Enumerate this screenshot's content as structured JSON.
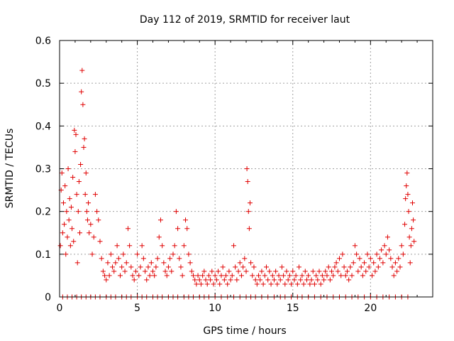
{
  "chart_data": {
    "type": "scatter",
    "title": "Day 112 of 2019, SRMTID for receiver laut",
    "xlabel": "GPS time / hours",
    "ylabel": "SRMTID / TECUs",
    "xlim": [
      0,
      24
    ],
    "ylim": [
      0,
      0.6
    ],
    "xticks": [
      0,
      5,
      10,
      15,
      20
    ],
    "xtick_labels": [
      "0",
      "5",
      "10",
      "15",
      "20"
    ],
    "yticks": [
      0,
      0.1,
      0.2,
      0.3,
      0.4,
      0.5,
      0.6
    ],
    "ytick_labels": [
      "0",
      "0.1",
      "0.2",
      "0.3",
      "0.4",
      "0.5",
      "0.6"
    ],
    "grid": true,
    "marker": "+",
    "color": "#e00000",
    "series": [
      {
        "name": "SRMTID",
        "points": [
          [
            0.05,
            0.12
          ],
          [
            0.1,
            0.25
          ],
          [
            0.15,
            0.29
          ],
          [
            0.2,
            0.15
          ],
          [
            0.25,
            0.22
          ],
          [
            0.3,
            0.17
          ],
          [
            0.35,
            0.26
          ],
          [
            0.4,
            0.1
          ],
          [
            0.45,
            0.2
          ],
          [
            0.5,
            0.14
          ],
          [
            0.55,
            0.3
          ],
          [
            0.6,
            0.18
          ],
          [
            0.65,
            0.23
          ],
          [
            0.7,
            0.12
          ],
          [
            0.75,
            0.21
          ],
          [
            0.8,
            0.16
          ],
          [
            0.85,
            0.28
          ],
          [
            0.9,
            0.13
          ],
          [
            0.95,
            0.39
          ],
          [
            1.0,
            0.34
          ],
          [
            1.05,
            0.38
          ],
          [
            1.1,
            0.24
          ],
          [
            1.15,
            0.08
          ],
          [
            1.2,
            0.2
          ],
          [
            1.25,
            0.27
          ],
          [
            1.3,
            0.15
          ],
          [
            1.35,
            0.31
          ],
          [
            1.4,
            0.48
          ],
          [
            1.45,
            0.53
          ],
          [
            1.5,
            0.45
          ],
          [
            1.55,
            0.35
          ],
          [
            1.6,
            0.37
          ],
          [
            1.65,
            0.24
          ],
          [
            1.7,
            0.29
          ],
          [
            1.75,
            0.2
          ],
          [
            1.8,
            0.18
          ],
          [
            1.85,
            0.22
          ],
          [
            1.9,
            0.15
          ],
          [
            2.0,
            0.17
          ],
          [
            2.1,
            0.1
          ],
          [
            2.2,
            0.14
          ],
          [
            2.3,
            0.24
          ],
          [
            2.4,
            0.2
          ],
          [
            2.5,
            0.18
          ],
          [
            2.6,
            0.13
          ],
          [
            2.7,
            0.09
          ],
          [
            2.8,
            0.06
          ],
          [
            2.9,
            0.05
          ],
          [
            3.0,
            0.04
          ],
          [
            3.1,
            0.08
          ],
          [
            3.2,
            0.05
          ],
          [
            3.3,
            0.1
          ],
          [
            3.4,
            0.07
          ],
          [
            3.5,
            0.06
          ],
          [
            3.6,
            0.08
          ],
          [
            3.7,
            0.12
          ],
          [
            3.8,
            0.09
          ],
          [
            3.9,
            0.05
          ],
          [
            4.0,
            0.07
          ],
          [
            4.1,
            0.1
          ],
          [
            4.2,
            0.06
          ],
          [
            4.3,
            0.08
          ],
          [
            4.4,
            0.16
          ],
          [
            4.5,
            0.12
          ],
          [
            4.6,
            0.07
          ],
          [
            4.7,
            0.05
          ],
          [
            4.8,
            0.04
          ],
          [
            4.9,
            0.06
          ],
          [
            5.0,
            0.1
          ],
          [
            5.1,
            0.05
          ],
          [
            5.2,
            0.07
          ],
          [
            5.3,
            0.12
          ],
          [
            5.4,
            0.09
          ],
          [
            5.5,
            0.06
          ],
          [
            5.6,
            0.04
          ],
          [
            5.7,
            0.07
          ],
          [
            5.8,
            0.05
          ],
          [
            5.9,
            0.08
          ],
          [
            6.0,
            0.06
          ],
          [
            6.1,
            0.05
          ],
          [
            6.2,
            0.07
          ],
          [
            6.3,
            0.09
          ],
          [
            6.4,
            0.14
          ],
          [
            6.5,
            0.18
          ],
          [
            6.6,
            0.12
          ],
          [
            6.7,
            0.08
          ],
          [
            6.8,
            0.06
          ],
          [
            6.9,
            0.05
          ],
          [
            7.0,
            0.07
          ],
          [
            7.1,
            0.09
          ],
          [
            7.2,
            0.06
          ],
          [
            7.3,
            0.1
          ],
          [
            7.4,
            0.12
          ],
          [
            7.5,
            0.2
          ],
          [
            7.6,
            0.16
          ],
          [
            7.7,
            0.09
          ],
          [
            7.8,
            0.07
          ],
          [
            7.9,
            0.05
          ],
          [
            8.0,
            0.12
          ],
          [
            8.1,
            0.18
          ],
          [
            8.2,
            0.16
          ],
          [
            8.3,
            0.1
          ],
          [
            8.4,
            0.08
          ],
          [
            8.5,
            0.06
          ],
          [
            8.6,
            0.05
          ],
          [
            8.7,
            0.04
          ],
          [
            8.8,
            0.03
          ],
          [
            8.9,
            0.05
          ],
          [
            9.0,
            0.04
          ],
          [
            9.1,
            0.03
          ],
          [
            9.2,
            0.05
          ],
          [
            9.3,
            0.06
          ],
          [
            9.4,
            0.04
          ],
          [
            9.5,
            0.03
          ],
          [
            9.6,
            0.05
          ],
          [
            9.7,
            0.04
          ],
          [
            9.8,
            0.06
          ],
          [
            9.9,
            0.03
          ],
          [
            10.0,
            0.05
          ],
          [
            10.1,
            0.04
          ],
          [
            10.2,
            0.06
          ],
          [
            10.3,
            0.03
          ],
          [
            10.4,
            0.05
          ],
          [
            10.5,
            0.07
          ],
          [
            10.6,
            0.04
          ],
          [
            10.7,
            0.05
          ],
          [
            10.8,
            0.03
          ],
          [
            10.9,
            0.06
          ],
          [
            11.0,
            0.04
          ],
          [
            11.1,
            0.05
          ],
          [
            11.2,
            0.12
          ],
          [
            11.3,
            0.07
          ],
          [
            11.4,
            0.04
          ],
          [
            11.5,
            0.06
          ],
          [
            11.6,
            0.08
          ],
          [
            11.7,
            0.05
          ],
          [
            11.8,
            0.07
          ],
          [
            11.9,
            0.09
          ],
          [
            12.0,
            0.06
          ],
          [
            12.05,
            0.3
          ],
          [
            12.1,
            0.27
          ],
          [
            12.15,
            0.2
          ],
          [
            12.2,
            0.16
          ],
          [
            12.25,
            0.22
          ],
          [
            12.3,
            0.08
          ],
          [
            12.4,
            0.05
          ],
          [
            12.5,
            0.07
          ],
          [
            12.6,
            0.04
          ],
          [
            12.7,
            0.03
          ],
          [
            12.8,
            0.05
          ],
          [
            12.9,
            0.04
          ],
          [
            13.0,
            0.06
          ],
          [
            13.1,
            0.03
          ],
          [
            13.2,
            0.05
          ],
          [
            13.3,
            0.07
          ],
          [
            13.4,
            0.04
          ],
          [
            13.5,
            0.06
          ],
          [
            13.6,
            0.03
          ],
          [
            13.7,
            0.05
          ],
          [
            13.8,
            0.04
          ],
          [
            13.9,
            0.06
          ],
          [
            14.0,
            0.03
          ],
          [
            14.1,
            0.05
          ],
          [
            14.2,
            0.04
          ],
          [
            14.3,
            0.07
          ],
          [
            14.4,
            0.05
          ],
          [
            14.5,
            0.03
          ],
          [
            14.6,
            0.06
          ],
          [
            14.7,
            0.04
          ],
          [
            14.8,
            0.05
          ],
          [
            14.9,
            0.03
          ],
          [
            15.0,
            0.06
          ],
          [
            15.1,
            0.04
          ],
          [
            15.2,
            0.05
          ],
          [
            15.3,
            0.03
          ],
          [
            15.4,
            0.07
          ],
          [
            15.5,
            0.04
          ],
          [
            15.6,
            0.05
          ],
          [
            15.7,
            0.03
          ],
          [
            15.8,
            0.06
          ],
          [
            15.9,
            0.04
          ],
          [
            16.0,
            0.05
          ],
          [
            16.1,
            0.03
          ],
          [
            16.2,
            0.04
          ],
          [
            16.3,
            0.06
          ],
          [
            16.4,
            0.03
          ],
          [
            16.5,
            0.05
          ],
          [
            16.6,
            0.04
          ],
          [
            16.7,
            0.06
          ],
          [
            16.8,
            0.03
          ],
          [
            16.9,
            0.05
          ],
          [
            17.0,
            0.04
          ],
          [
            17.1,
            0.06
          ],
          [
            17.2,
            0.05
          ],
          [
            17.3,
            0.07
          ],
          [
            17.4,
            0.04
          ],
          [
            17.5,
            0.06
          ],
          [
            17.6,
            0.05
          ],
          [
            17.7,
            0.07
          ],
          [
            17.8,
            0.08
          ],
          [
            17.9,
            0.06
          ],
          [
            18.0,
            0.09
          ],
          [
            18.1,
            0.05
          ],
          [
            18.2,
            0.1
          ],
          [
            18.3,
            0.07
          ],
          [
            18.4,
            0.05
          ],
          [
            18.5,
            0.06
          ],
          [
            18.6,
            0.04
          ],
          [
            18.7,
            0.07
          ],
          [
            18.8,
            0.05
          ],
          [
            18.9,
            0.08
          ],
          [
            19.0,
            0.12
          ],
          [
            19.1,
            0.1
          ],
          [
            19.2,
            0.06
          ],
          [
            19.3,
            0.09
          ],
          [
            19.4,
            0.07
          ],
          [
            19.5,
            0.05
          ],
          [
            19.6,
            0.08
          ],
          [
            19.7,
            0.06
          ],
          [
            19.8,
            0.1
          ],
          [
            19.9,
            0.07
          ],
          [
            20.0,
            0.09
          ],
          [
            20.1,
            0.05
          ],
          [
            20.2,
            0.08
          ],
          [
            20.3,
            0.06
          ],
          [
            20.4,
            0.1
          ],
          [
            20.5,
            0.07
          ],
          [
            20.6,
            0.09
          ],
          [
            20.7,
            0.11
          ],
          [
            20.8,
            0.08
          ],
          [
            20.9,
            0.12
          ],
          [
            21.0,
            0.1
          ],
          [
            21.1,
            0.14
          ],
          [
            21.2,
            0.11
          ],
          [
            21.3,
            0.09
          ],
          [
            21.4,
            0.07
          ],
          [
            21.5,
            0.05
          ],
          [
            21.6,
            0.08
          ],
          [
            21.7,
            0.06
          ],
          [
            21.8,
            0.09
          ],
          [
            21.9,
            0.07
          ],
          [
            22.0,
            0.12
          ],
          [
            22.1,
            0.1
          ],
          [
            22.2,
            0.17
          ],
          [
            22.25,
            0.23
          ],
          [
            22.3,
            0.26
          ],
          [
            22.35,
            0.29
          ],
          [
            22.4,
            0.24
          ],
          [
            22.45,
            0.2
          ],
          [
            22.5,
            0.14
          ],
          [
            22.55,
            0.08
          ],
          [
            22.6,
            0.12
          ],
          [
            22.65,
            0.16
          ],
          [
            22.7,
            0.22
          ],
          [
            22.75,
            0.18
          ],
          [
            22.8,
            0.13
          ]
        ],
        "zeros": [
          0.2,
          0.5,
          0.8,
          1.1,
          1.4,
          1.7,
          2.0,
          2.3,
          2.6,
          3.0,
          3.3,
          3.6,
          4.0,
          4.3,
          4.6,
          5.0,
          5.3,
          5.6,
          6.0,
          6.3,
          6.6,
          7.0,
          7.3,
          7.6,
          8.0,
          8.3,
          8.6,
          9.0,
          9.3,
          9.6,
          10.0,
          10.4,
          10.8,
          11.2,
          11.6,
          12.0,
          12.3,
          12.6,
          13.0,
          13.4,
          13.8,
          14.2,
          14.5,
          14.9,
          15.3,
          15.6,
          16.0,
          16.4,
          16.8,
          17.2,
          17.6,
          18.0,
          18.4,
          18.8,
          19.2,
          19.6,
          20.0,
          20.4,
          20.8,
          21.2,
          21.6,
          22.0,
          22.4
        ]
      }
    ]
  }
}
